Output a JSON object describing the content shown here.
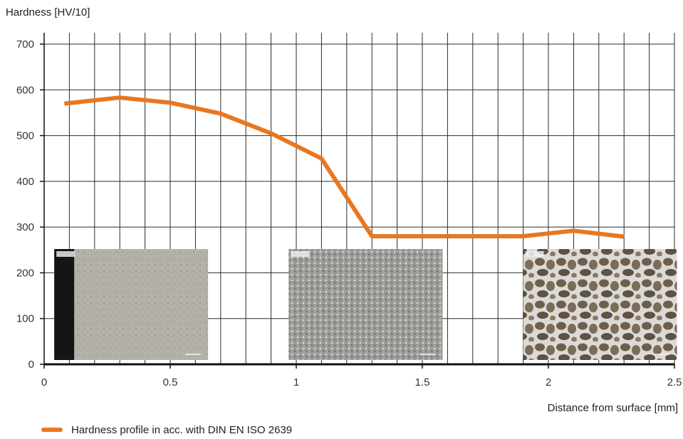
{
  "colors": {
    "line": "#E87722",
    "grid": "#2b2b2b",
    "axis": "#111111"
  },
  "chart_data": {
    "type": "line",
    "title": "",
    "ylabel": "Hardness [HV/10]",
    "xlabel": "Distance from surface [mm]",
    "xlim": [
      0,
      2.5
    ],
    "ylim": [
      0,
      700
    ],
    "x_ticks": [
      0,
      0.5,
      1,
      1.5,
      2,
      2.5
    ],
    "x_tick_labels": [
      "0",
      "0.5",
      "1",
      "1.5",
      "2",
      "2.5"
    ],
    "y_ticks": [
      0,
      100,
      200,
      300,
      400,
      500,
      600,
      700
    ],
    "y_tick_labels": [
      "0",
      "100",
      "200",
      "300",
      "400",
      "500",
      "600",
      "700"
    ],
    "grid": true,
    "series": [
      {
        "name": "Hardness profile in acc. with DIN EN ISO 2639",
        "x": [
          0.08,
          0.3,
          0.5,
          0.7,
          0.9,
          1.1,
          1.3,
          1.5,
          1.7,
          1.9,
          2.1,
          2.3
        ],
        "y": [
          570,
          583,
          572,
          548,
          505,
          450,
          280,
          280,
          280,
          280,
          292,
          279
        ]
      }
    ],
    "legend": "bottom-left",
    "micrograph_insets": [
      {
        "name": "micrograph-surface",
        "x_start": 0.04,
        "x_end": 0.65
      },
      {
        "name": "micrograph-transition",
        "x_start": 0.97,
        "x_end": 1.58
      },
      {
        "name": "micrograph-core",
        "x_start": 1.9,
        "x_end": 2.51
      }
    ]
  }
}
